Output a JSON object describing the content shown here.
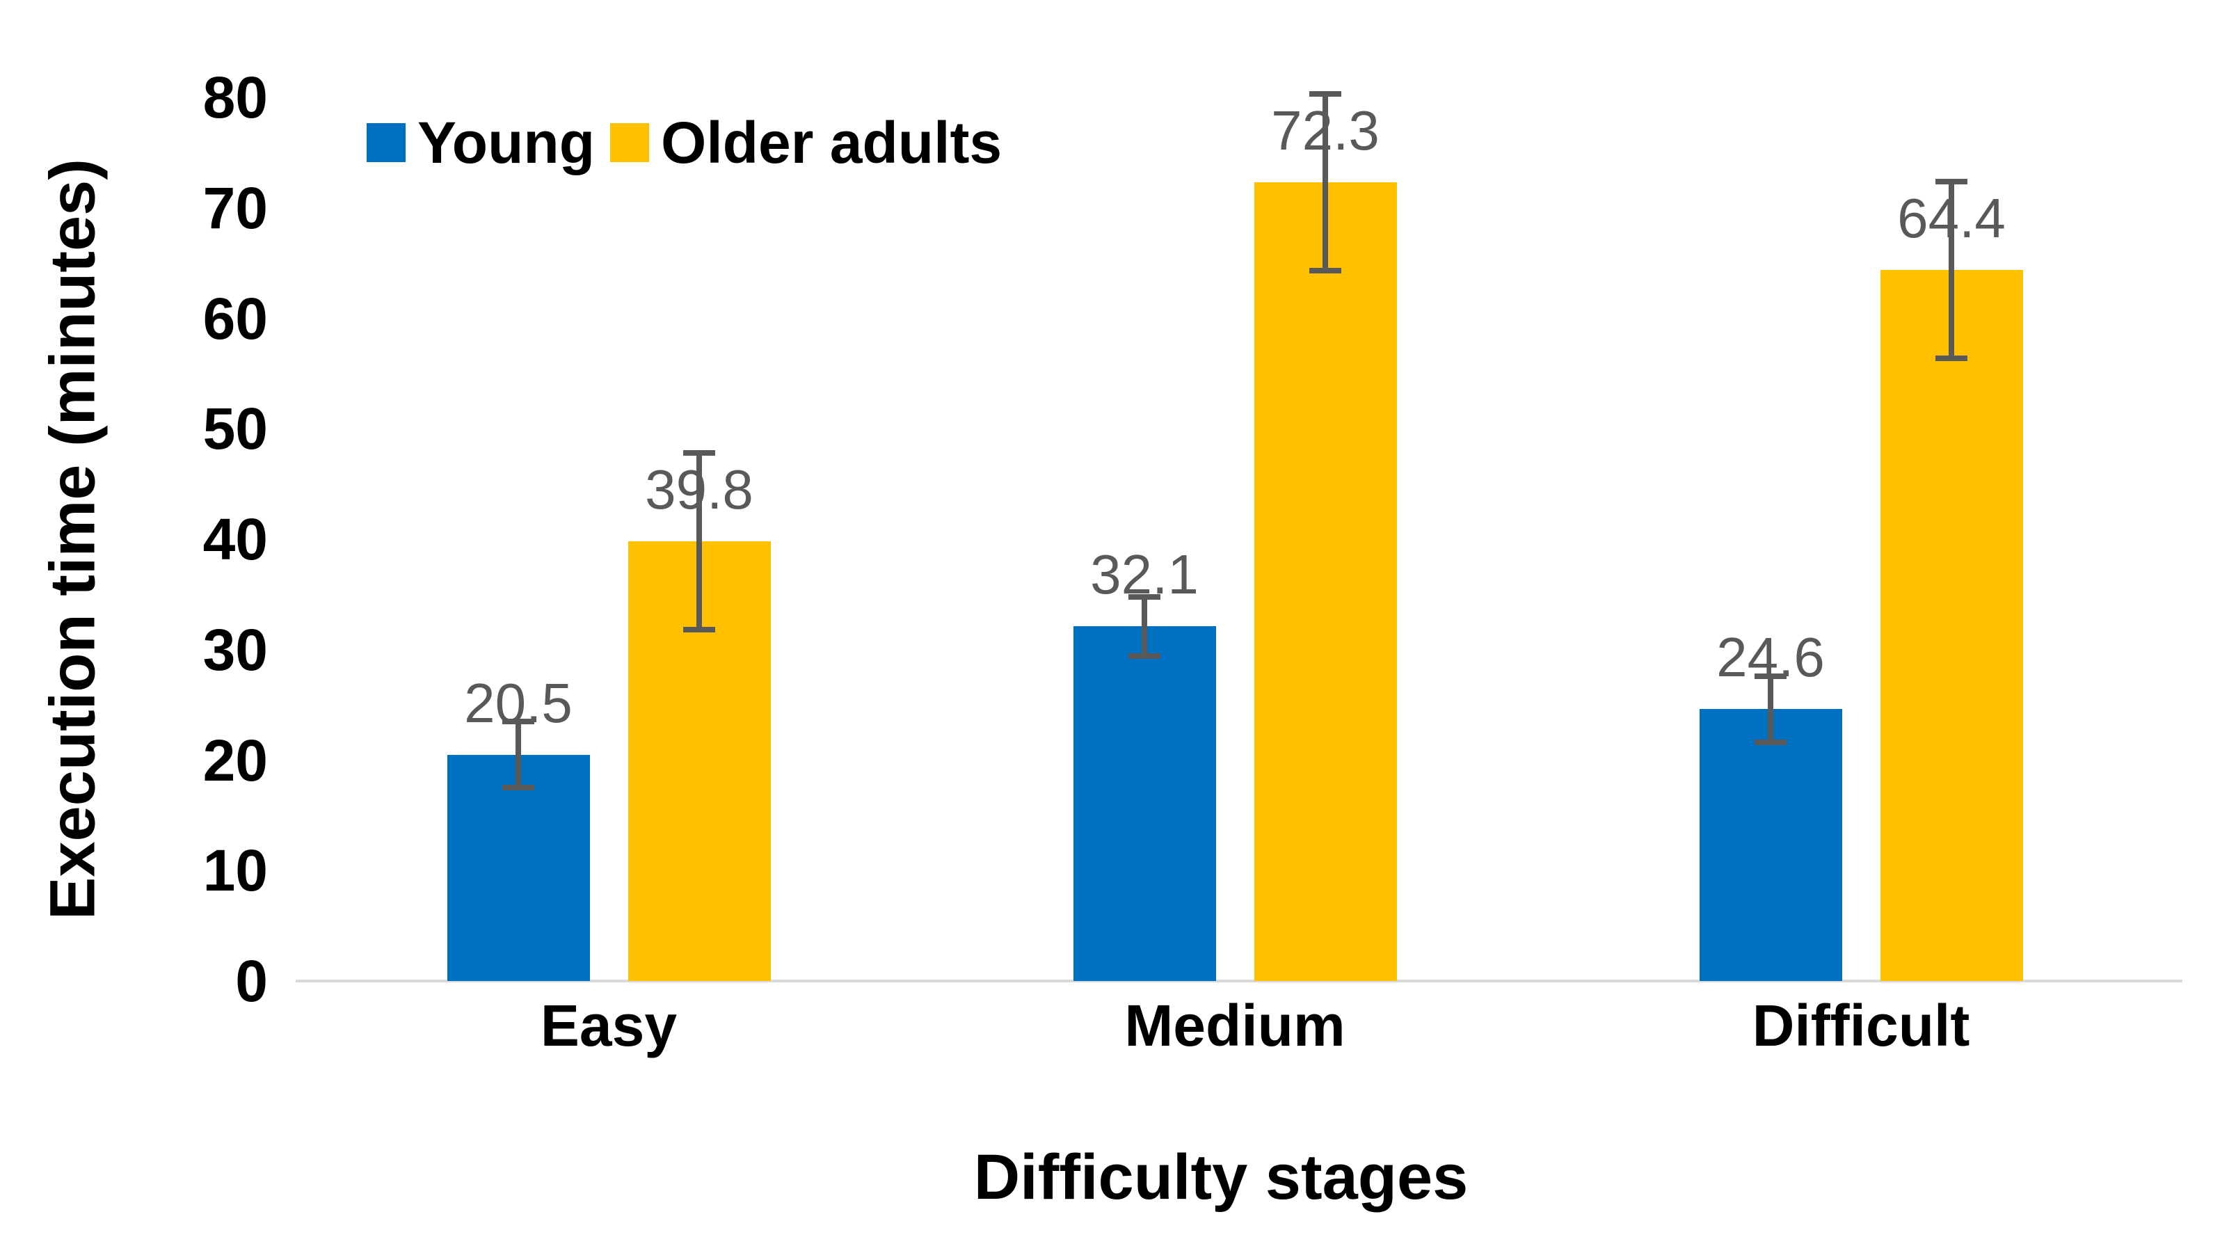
{
  "chart_data": {
    "type": "bar",
    "title": "",
    "categories": [
      "Easy",
      "Medium",
      "Difficult"
    ],
    "series": [
      {
        "name": "Young",
        "color": "#0070C0",
        "values": [
          20.5,
          32.1,
          24.6
        ],
        "errors": [
          3.0,
          2.7,
          3.0
        ]
      },
      {
        "name": "Older adults",
        "color": "#FFC000",
        "values": [
          39.8,
          72.3,
          64.4
        ],
        "errors": [
          8.0,
          8.0,
          8.0
        ]
      }
    ],
    "data_labels": [
      [
        "20.5",
        "32.1",
        "24.6"
      ],
      [
        "39.8",
        "72.3",
        "64.4"
      ]
    ],
    "xlabel": "Difficulty stages",
    "ylabel": "Execution time (minutes)",
    "ylim": [
      0,
      80
    ],
    "yticks": [
      0,
      10,
      20,
      30,
      40,
      50,
      60,
      70,
      80
    ],
    "grid": false,
    "legend_position": "top-left",
    "colors": {
      "background": "#FFFFFF",
      "text": "#000000",
      "data_label": "#595959",
      "error_bar": "#595959",
      "axis_line": "#D9D9D9"
    }
  }
}
